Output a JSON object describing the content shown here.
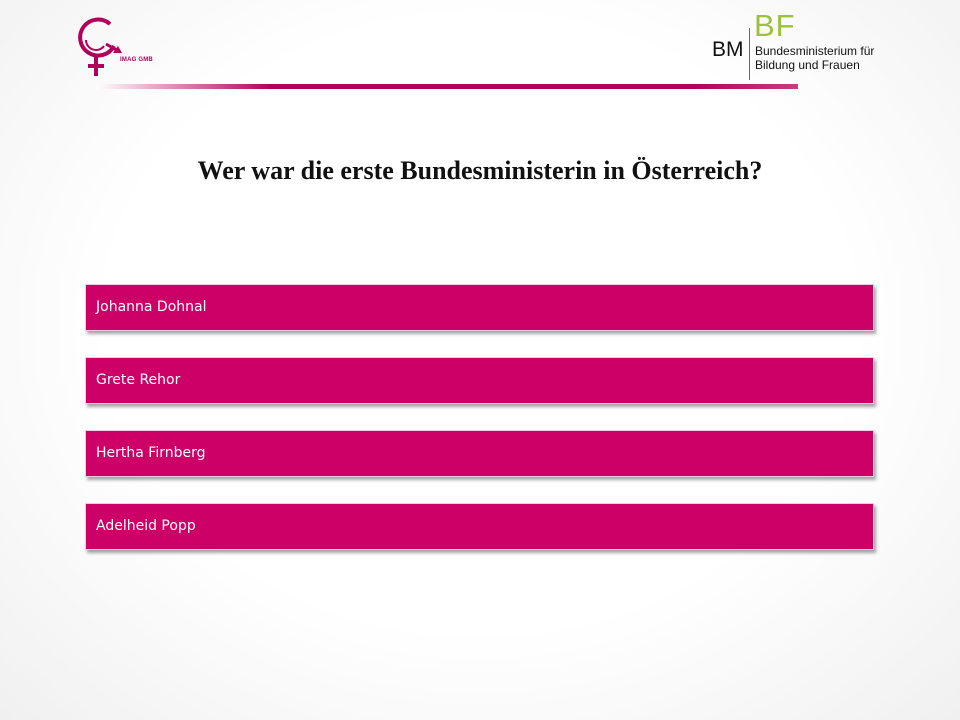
{
  "header": {
    "left_logo": {
      "text": "IMAG GMB",
      "accent_color": "#b0005b"
    },
    "right_logo": {
      "bm": "BM",
      "bf": "BF",
      "line1": "Bundesministerium für",
      "line2": "Bildung und Frauen",
      "bf_color": "#9cc13a"
    },
    "rule_color": "#b3005d"
  },
  "question": "Wer war die erste Bundesministerin in Österreich?",
  "answers": [
    {
      "label": "Johanna Dohnal"
    },
    {
      "label": "Grete Rehor"
    },
    {
      "label": "Hertha Firnberg"
    },
    {
      "label": "Adelheid Popp"
    }
  ],
  "colors": {
    "answer_bg": "#cc0066",
    "answer_text": "#ffffff",
    "question_text": "#111111"
  }
}
